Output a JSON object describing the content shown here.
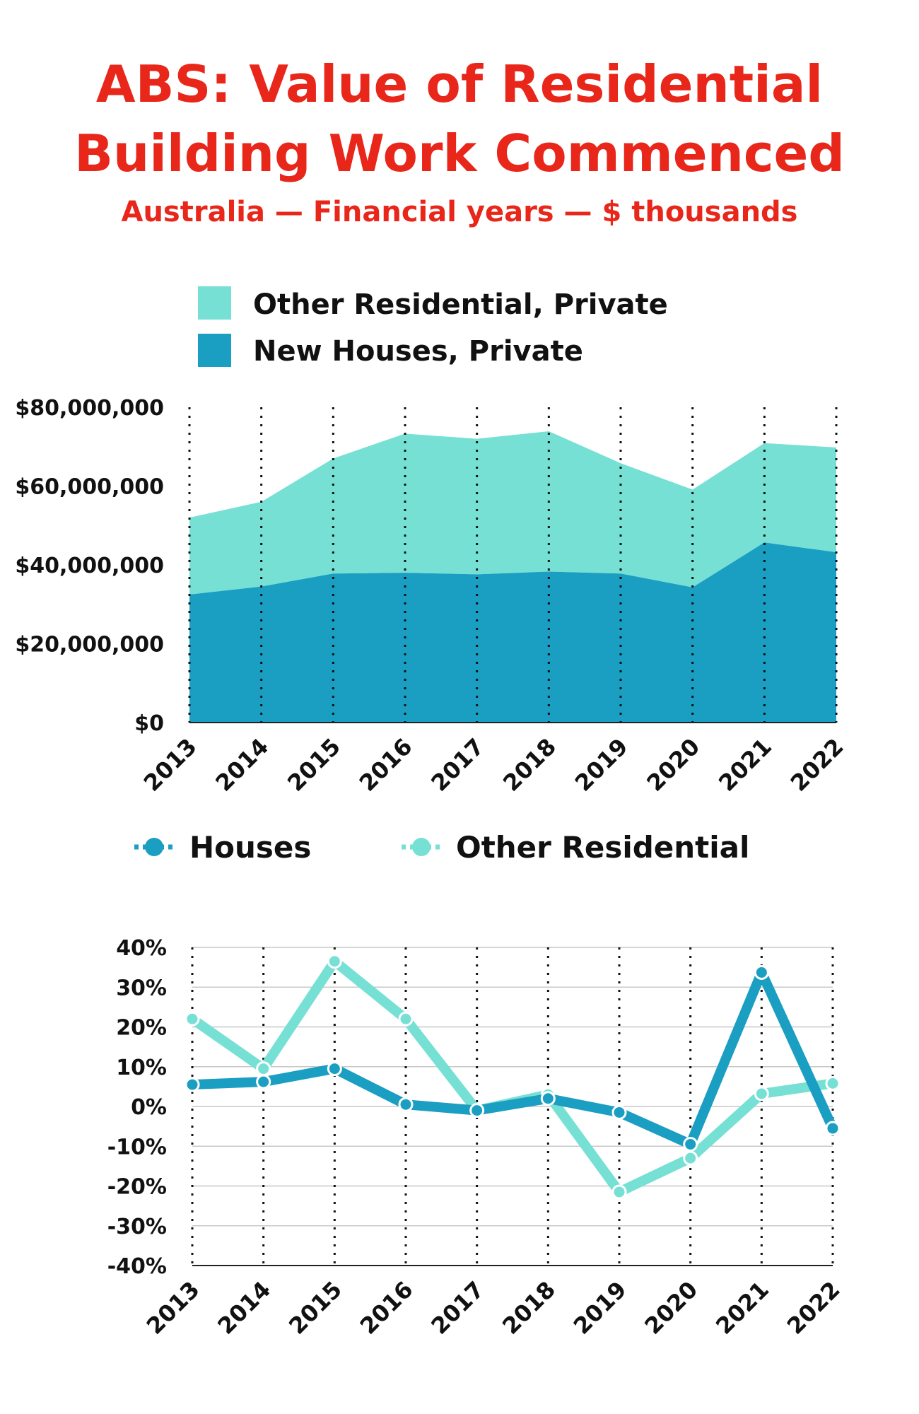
{
  "title_line1": "ABS: Value of Residential",
  "title_line2": "Building Work Commenced",
  "subtitle": "Australia — Financial years — $ thousands",
  "colors": {
    "title": "#e8261a",
    "other_residential": "#76e0d4",
    "new_houses": "#1a9ec2",
    "houses_line": "#1a9ec2",
    "other_line": "#76e0d4"
  },
  "chart_data": [
    {
      "type": "area",
      "stacked": true,
      "x": [
        "2013",
        "2014",
        "2015",
        "2016",
        "2017",
        "2018",
        "2019",
        "2020",
        "2021",
        "2022"
      ],
      "series": [
        {
          "name": "New Houses, Private",
          "values": [
            32500000,
            34500000,
            37800000,
            38000000,
            37600000,
            38300000,
            37800000,
            34300000,
            45700000,
            43200000
          ]
        },
        {
          "name": "Other Residential, Private",
          "values": [
            19500000,
            21500000,
            29200000,
            35300000,
            34400000,
            35600000,
            28000000,
            24800000,
            25200000,
            26600000
          ]
        }
      ],
      "ylim": [
        0,
        80000000
      ],
      "yticks": [
        "$0",
        "$20,000,000",
        "$40,000,000",
        "$60,000,000",
        "$80,000,000"
      ],
      "grid": "vertical dotted",
      "legend": "top-left",
      "xlabel": "",
      "ylabel": ""
    },
    {
      "type": "line",
      "x": [
        "2013",
        "2014",
        "2015",
        "2016",
        "2017",
        "2018",
        "2019",
        "2020",
        "2021",
        "2022"
      ],
      "series": [
        {
          "name": "Houses",
          "values": [
            5.5,
            6.2,
            9.5,
            0.5,
            -1.0,
            2.0,
            -1.5,
            -9.5,
            33.7,
            -5.5
          ]
        },
        {
          "name": "Other Residential",
          "values": [
            22.0,
            9.5,
            36.5,
            22.0,
            -1.0,
            3.0,
            -21.5,
            -13.0,
            3.2,
            5.8
          ]
        }
      ],
      "ylim": [
        -40,
        40
      ],
      "yticks": [
        "-40%",
        "-30%",
        "-20%",
        "-10%",
        "0%",
        "10%",
        "20%",
        "30%",
        "40%"
      ],
      "grid": "horizontal solid, vertical dotted",
      "legend": "top",
      "xlabel": "",
      "ylabel": ""
    }
  ]
}
